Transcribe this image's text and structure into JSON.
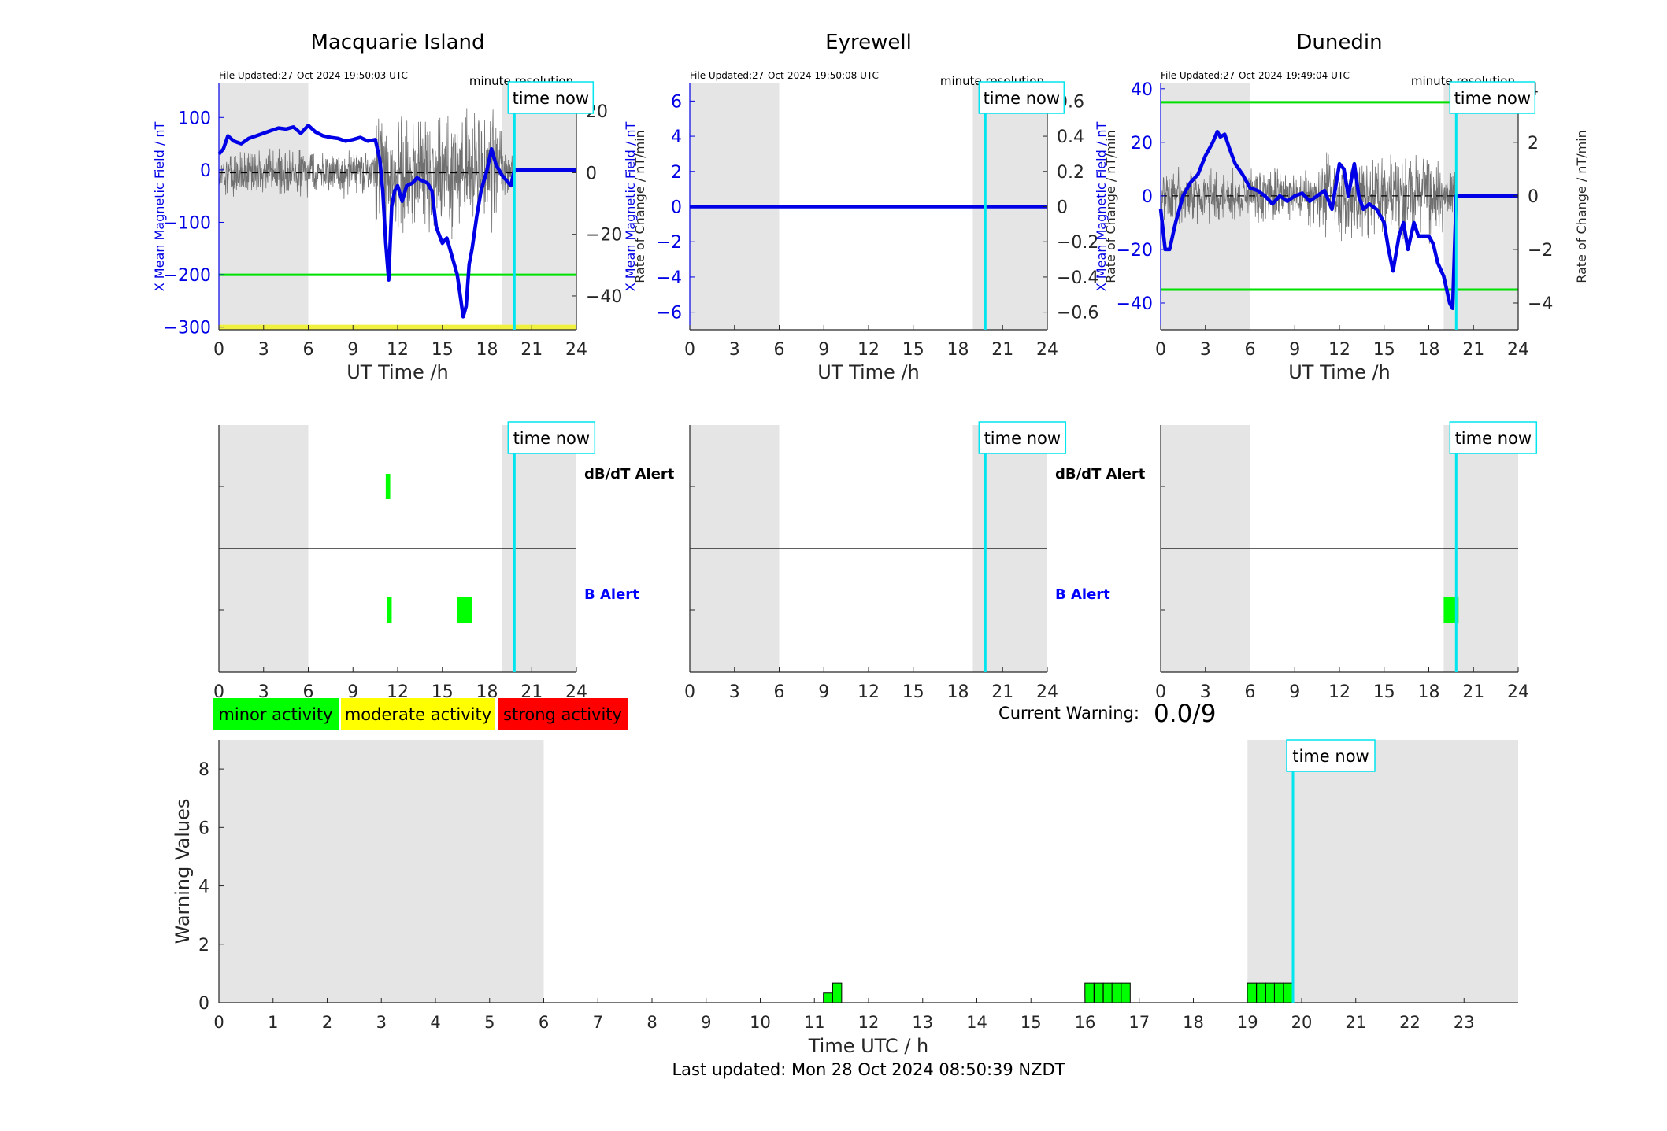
{
  "chart_data": [
    {
      "type": "line",
      "title": "Macquarie Island",
      "file_updated": "File Updated:27-Oct-2024 19:50:03 UTC",
      "resolution": "minute resolution",
      "xlabel": "UT Time /h",
      "ylabel": "X Mean Magnetic Field / nT",
      "y2label": "Rate of Change / nT/min",
      "xlim": [
        0,
        24
      ],
      "ylim": [
        -305,
        165
      ],
      "y2lim": [
        -51,
        29
      ],
      "xticks": [
        0,
        3,
        6,
        9,
        12,
        15,
        18,
        21,
        24
      ],
      "yticks": [
        100,
        0,
        -100,
        -200,
        -300
      ],
      "y2ticks": [
        20,
        0,
        -20,
        -40
      ],
      "shaded_x": [
        [
          0,
          6
        ],
        [
          19,
          24
        ]
      ],
      "time_now": 19.84,
      "time_now_label": "time now",
      "threshold_lines": [
        {
          "color": "#00e000",
          "y": -200
        },
        {
          "color": "#f0f040",
          "y": -300
        }
      ],
      "rate_noise": 9,
      "series": [
        {
          "color": "#0000e6",
          "x": [
            0,
            0.3,
            0.6,
            1,
            1.5,
            2,
            2.5,
            3,
            3.5,
            4,
            4.5,
            5,
            5.5,
            6,
            6.5,
            7,
            7.5,
            8,
            8.5,
            9,
            9.5,
            10,
            10.5,
            10.8,
            11,
            11.2,
            11.4,
            11.6,
            11.8,
            12,
            12.3,
            12.6,
            13,
            13.3,
            13.6,
            14,
            14.3,
            14.6,
            15,
            15.3,
            15.6,
            16,
            16.2,
            16.4,
            16.6,
            16.8,
            17,
            17.3,
            17.6,
            18,
            18.3,
            18.6,
            19,
            19.3,
            19.6,
            19.84,
            24
          ],
          "values": [
            30,
            40,
            65,
            55,
            50,
            60,
            65,
            70,
            75,
            80,
            78,
            82,
            70,
            85,
            72,
            65,
            62,
            60,
            55,
            58,
            62,
            55,
            58,
            20,
            -40,
            -140,
            -210,
            -70,
            -40,
            -30,
            -60,
            -30,
            -25,
            -15,
            -20,
            -25,
            -40,
            -110,
            -140,
            -130,
            -160,
            -200,
            -240,
            -280,
            -260,
            -180,
            -150,
            -90,
            -40,
            0,
            40,
            10,
            -10,
            -20,
            -30,
            0,
            0
          ]
        }
      ]
    },
    {
      "type": "line",
      "title": "Eyrewell",
      "file_updated": "File Updated:27-Oct-2024 19:50:08 UTC",
      "resolution": "minute resolution",
      "xlabel": "UT Time /h",
      "ylabel": "X Mean Magnetic Field / nT",
      "y2label": "Rate of Change / nT/min",
      "xlim": [
        0,
        24
      ],
      "ylim": [
        -7,
        7
      ],
      "y2lim": [
        -0.7,
        0.7
      ],
      "xticks": [
        0,
        3,
        6,
        9,
        12,
        15,
        18,
        21,
        24
      ],
      "yticks": [
        6,
        4,
        2,
        0,
        -2,
        -4,
        -6
      ],
      "y2ticks": [
        0.6,
        0.4,
        0.2,
        0,
        -0.2,
        -0.4,
        -0.6
      ],
      "shaded_x": [
        [
          0,
          6
        ],
        [
          19,
          24
        ]
      ],
      "time_now": 19.84,
      "time_now_label": "time now",
      "threshold_lines": [],
      "rate_noise": 0,
      "series": [
        {
          "color": "#0000e6",
          "x": [
            0,
            24
          ],
          "values": [
            0,
            0
          ]
        }
      ]
    },
    {
      "type": "line",
      "title": "Dunedin",
      "file_updated": "File Updated:27-Oct-2024 19:49:04 UTC",
      "resolution": "minute resolution",
      "xlabel": "UT Time /h",
      "ylabel": "X Mean Magnetic Field / nT",
      "y2label": "Rate of Change / nT/min",
      "xlim": [
        0,
        24
      ],
      "ylim": [
        -50,
        42
      ],
      "y2lim": [
        -5,
        4.2
      ],
      "xticks": [
        0,
        3,
        6,
        9,
        12,
        15,
        18,
        21,
        24
      ],
      "yticks": [
        40,
        20,
        0,
        -20,
        -40
      ],
      "y2ticks": [
        4,
        2,
        0,
        -2,
        -4
      ],
      "shaded_x": [
        [
          0,
          6
        ],
        [
          19,
          24
        ]
      ],
      "time_now": 19.84,
      "time_now_label": "time now",
      "threshold_lines": [
        {
          "color": "#00e000",
          "y": 35
        },
        {
          "color": "#00e000",
          "y": -35
        }
      ],
      "rate_noise": 1.2,
      "series": [
        {
          "color": "#0000e6",
          "x": [
            0,
            0.3,
            0.6,
            1,
            1.5,
            2,
            2.5,
            3,
            3.5,
            3.8,
            4,
            4.3,
            4.6,
            5,
            5.5,
            6,
            6.5,
            7,
            7.5,
            8,
            8.5,
            9,
            9.5,
            10,
            10.5,
            11,
            11.5,
            12,
            12.3,
            12.6,
            13,
            13.3,
            13.6,
            14,
            14.5,
            15,
            15.3,
            15.6,
            16,
            16.3,
            16.6,
            17,
            17.3,
            17.6,
            18,
            18.3,
            18.6,
            19,
            19.2,
            19.4,
            19.6,
            19.84,
            24
          ],
          "values": [
            -5,
            -20,
            -20,
            -10,
            0,
            5,
            8,
            15,
            20,
            24,
            22,
            23,
            18,
            12,
            8,
            3,
            2,
            0,
            -3,
            0,
            -2,
            0,
            1,
            -2,
            0,
            2,
            -5,
            12,
            10,
            0,
            12,
            0,
            -5,
            -3,
            -5,
            -10,
            -20,
            -28,
            -15,
            -10,
            -20,
            -10,
            -15,
            -15,
            -15,
            -18,
            -25,
            -30,
            -35,
            -40,
            -42,
            0,
            0
          ]
        }
      ]
    },
    {
      "type": "bar",
      "panel": "alerts",
      "station": "Macquarie Island",
      "xlim": [
        0,
        24
      ],
      "xticks": [
        0,
        3,
        6,
        9,
        12,
        15,
        18,
        21,
        24
      ],
      "row_labels": [
        "dB/dT Alert",
        "B Alert"
      ],
      "shaded_x": [
        [
          0,
          6
        ],
        [
          19,
          24
        ]
      ],
      "time_now": 19.84,
      "time_now_label": "time now",
      "dbdt_alert_intervals": [
        [
          11.2,
          11.5
        ]
      ],
      "b_alert_intervals": [
        [
          11.3,
          11.6
        ],
        [
          16.0,
          17.0
        ]
      ]
    },
    {
      "type": "bar",
      "panel": "alerts",
      "station": "Eyrewell",
      "xlim": [
        0,
        24
      ],
      "xticks": [
        0,
        3,
        6,
        9,
        12,
        15,
        18,
        21,
        24
      ],
      "row_labels": [
        "dB/dT Alert",
        "B Alert"
      ],
      "shaded_x": [
        [
          0,
          6
        ],
        [
          19,
          24
        ]
      ],
      "time_now": 19.84,
      "time_now_label": "time now",
      "dbdt_alert_intervals": [],
      "b_alert_intervals": []
    },
    {
      "type": "bar",
      "panel": "alerts",
      "station": "Dunedin",
      "xlim": [
        0,
        24
      ],
      "xticks": [
        0,
        3,
        6,
        9,
        12,
        15,
        18,
        21,
        24
      ],
      "row_labels": [],
      "shaded_x": [
        [
          0,
          6
        ],
        [
          19,
          24
        ]
      ],
      "time_now": 19.84,
      "time_now_label": "time now",
      "dbdt_alert_intervals": [],
      "b_alert_intervals": [
        [
          19.0,
          20.0
        ]
      ]
    },
    {
      "type": "bar",
      "panel": "warning",
      "xlabel": "Time UTC / h",
      "ylabel": "Warning Values",
      "xlim": [
        0,
        24
      ],
      "ylim": [
        0,
        9
      ],
      "xticks": [
        0,
        1,
        2,
        3,
        4,
        5,
        6,
        7,
        8,
        9,
        10,
        11,
        12,
        13,
        14,
        15,
        16,
        17,
        18,
        19,
        20,
        21,
        22,
        23
      ],
      "yticks": [
        0,
        2,
        4,
        6,
        8
      ],
      "shaded_x": [
        [
          0,
          6
        ],
        [
          19,
          24
        ]
      ],
      "time_now": 19.84,
      "time_now_label": "time now",
      "bar_width": 0.1667,
      "bars": [
        {
          "x": 11.25,
          "value": 0.33
        },
        {
          "x": 11.42,
          "value": 0.67
        },
        {
          "x": 16.08,
          "value": 0.67
        },
        {
          "x": 16.25,
          "value": 0.67
        },
        {
          "x": 16.42,
          "value": 0.67
        },
        {
          "x": 16.58,
          "value": 0.67
        },
        {
          "x": 16.75,
          "value": 0.67
        },
        {
          "x": 19.08,
          "value": 0.67
        },
        {
          "x": 19.25,
          "value": 0.67
        },
        {
          "x": 19.42,
          "value": 0.67
        },
        {
          "x": 19.58,
          "value": 0.67
        },
        {
          "x": 19.75,
          "value": 0.67
        }
      ]
    }
  ],
  "legend": [
    {
      "label": "minor activity",
      "color": "#00ff00"
    },
    {
      "label": "moderate activity",
      "color": "#ffff00"
    },
    {
      "label": "strong activity",
      "color": "#ff0000"
    }
  ],
  "current_warning": {
    "label": "Current Warning:",
    "value": "0.0/9"
  },
  "last_updated": "Last updated: Mon 28 Oct 2024 08:50:39 NZDT",
  "colors": {
    "shade": "#e5e5e5",
    "time_now": "#00e5ee",
    "field": "#0000e6",
    "alert_green": "#00ff00",
    "b_alert_text": "#0000ff"
  }
}
